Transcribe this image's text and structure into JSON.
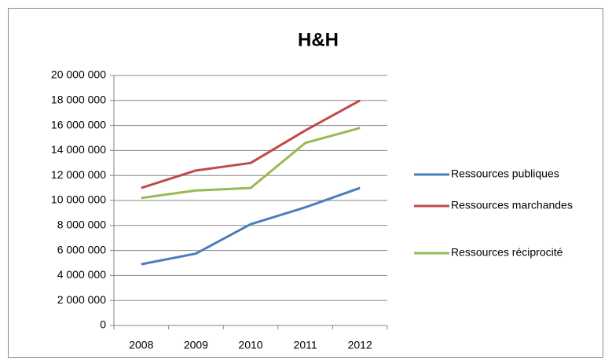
{
  "chart_data": {
    "type": "line",
    "title": "H&H",
    "categories": [
      "2008",
      "2009",
      "2010",
      "2011",
      "2012"
    ],
    "series": [
      {
        "name": "Ressources publiques",
        "color": "#4a7ebb",
        "values": [
          4900000,
          5750000,
          8100000,
          9450000,
          11000000
        ]
      },
      {
        "name": "Ressources marchandes",
        "color": "#be4b48",
        "values": [
          11000000,
          12400000,
          13000000,
          15600000,
          18000000
        ]
      },
      {
        "name": "Ressources réciprocité",
        "color": "#98b954",
        "values": [
          10200000,
          10800000,
          11000000,
          14600000,
          15800000
        ]
      }
    ],
    "ylim": [
      0,
      20000000
    ],
    "yticks": [
      0,
      {
        "value": 2000000,
        "label": "2 000 000"
      },
      {
        "value": 4000000,
        "label": "4 000 000"
      },
      {
        "value": 6000000,
        "label": "6 000 000"
      },
      {
        "value": 8000000,
        "label": "8 000 000"
      },
      {
        "value": 10000000,
        "label": "10 000 000"
      },
      {
        "value": 12000000,
        "label": "12 000 000"
      },
      {
        "value": 14000000,
        "label": "14 000 000"
      },
      {
        "value": 16000000,
        "label": "16 000 000"
      },
      {
        "value": 18000000,
        "label": "18 000 000"
      },
      {
        "value": 20000000,
        "label": "20 000 000"
      }
    ],
    "grid": true,
    "legend": "right"
  }
}
